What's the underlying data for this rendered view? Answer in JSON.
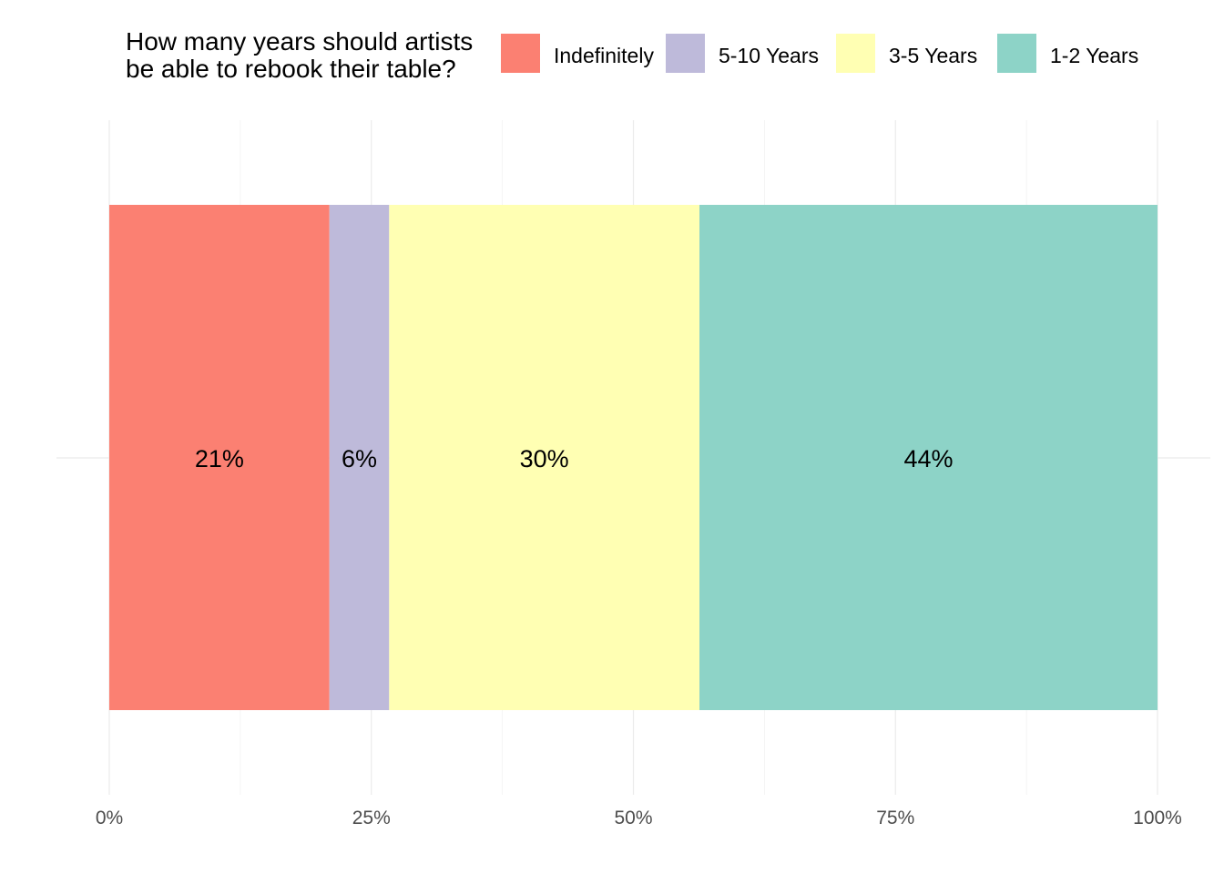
{
  "chart_data": {
    "type": "bar",
    "orientation": "horizontal",
    "stacked": true,
    "title": "",
    "xlabel": "",
    "ylabel": "",
    "xlim": [
      0,
      1
    ],
    "x_tick_labels": [
      "0%",
      "25%",
      "50%",
      "75%",
      "100%"
    ],
    "x_tick_values": [
      0,
      0.25,
      0.5,
      0.75,
      1.0
    ],
    "grid": true,
    "legend": {
      "title": "How many years should artists be able to rebook their table?",
      "title_lines": [
        "How many years should artists",
        "be able to rebook their table?"
      ],
      "position": "top",
      "entries": [
        "Indefinitely",
        "5-10 Years",
        "3-5 Years",
        "1-2 Years"
      ]
    },
    "series": [
      {
        "name": "Indefinitely",
        "value": 0.21,
        "label": "21%",
        "color": "#FB8072"
      },
      {
        "name": "5-10 Years",
        "value": 0.057,
        "label": "6%",
        "color": "#BEBADA"
      },
      {
        "name": "3-5 Years",
        "value": 0.296,
        "label": "30%",
        "color": "#FFFFB3"
      },
      {
        "name": "1-2 Years",
        "value": 0.437,
        "label": "44%",
        "color": "#8DD3C7"
      }
    ]
  }
}
